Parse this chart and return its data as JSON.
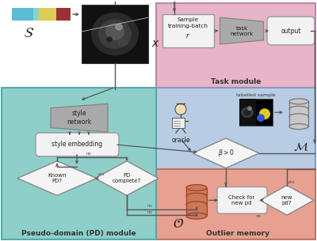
{
  "fig_width": 4.0,
  "fig_height": 3.05,
  "dpi": 100,
  "task_bg": "#e8b4c8",
  "pd_bg": "#8ecfc9",
  "oracle_bg": "#b8cce4",
  "outlier_bg": "#e8a090",
  "box_fill": "#f2f2f2",
  "box_edge": "#999999",
  "trap_fill": "#aaaaaa",
  "trap_edge": "#888888",
  "diamond_fill": "#f5f5f5",
  "diamond_edge": "#888888",
  "arrow_color": "#555555",
  "db_fill_gray": "#c8c8c8",
  "db_edge_gray": "#777777",
  "db_fill_red": "#cc7755",
  "db_edge_red": "#994433",
  "task_label": "Task module",
  "pd_label": "Pseudo-domain (PD) module",
  "outlier_label": "Outlier memory",
  "sample_batch": "Sample\ntraining-batch\n$\\mathcal{T}$",
  "task_net": "task\nnetwork",
  "output_lbl": "output",
  "style_net": "style\nnetwork",
  "style_emb": "style embedding",
  "known_pd": "Known\nPD?",
  "pd_complete": "PD\ncomplete?",
  "oracle_lbl": "oracle",
  "beta_lbl": "$\\beta > 0$",
  "labelled_lbl": "labelled sample",
  "check_pd": "Check for\nnew pd",
  "new_pd": "new\npd?",
  "yes": "yes",
  "no": "no",
  "S_label": "$\\mathcal{S}$",
  "x_label": "$x$",
  "O_label": "$\\mathcal{O}$",
  "M_label": "$\\mathcal{M}$",
  "fs": 5.5,
  "fs_mod": 6.5,
  "fs_sym": 11
}
